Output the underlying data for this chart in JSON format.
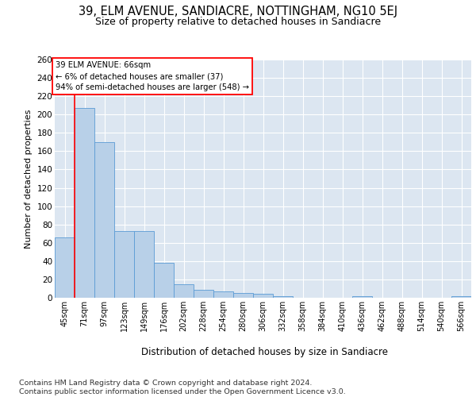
{
  "title": "39, ELM AVENUE, SANDIACRE, NOTTINGHAM, NG10 5EJ",
  "subtitle": "Size of property relative to detached houses in Sandiacre",
  "xlabel_bottom": "Distribution of detached houses by size in Sandiacre",
  "ylabel": "Number of detached properties",
  "categories": [
    "45sqm",
    "71sqm",
    "97sqm",
    "123sqm",
    "149sqm",
    "176sqm",
    "202sqm",
    "228sqm",
    "254sqm",
    "280sqm",
    "306sqm",
    "332sqm",
    "358sqm",
    "384sqm",
    "410sqm",
    "436sqm",
    "462sqm",
    "488sqm",
    "514sqm",
    "540sqm",
    "566sqm"
  ],
  "values": [
    66,
    207,
    170,
    73,
    73,
    38,
    15,
    9,
    7,
    5,
    4,
    2,
    0,
    0,
    0,
    2,
    0,
    0,
    0,
    0,
    2
  ],
  "bar_color": "#b8d0e8",
  "bar_edge_color": "#5b9bd5",
  "annotation_text": "39 ELM AVENUE: 66sqm\n← 6% of detached houses are smaller (37)\n94% of semi-detached houses are larger (548) →",
  "ylim_max": 260,
  "yticks": [
    0,
    20,
    40,
    60,
    80,
    100,
    120,
    140,
    160,
    180,
    200,
    220,
    240,
    260
  ],
  "plot_bg_color": "#dce6f1",
  "footer_line1": "Contains HM Land Registry data © Crown copyright and database right 2024.",
  "footer_line2": "Contains public sector information licensed under the Open Government Licence v3.0."
}
